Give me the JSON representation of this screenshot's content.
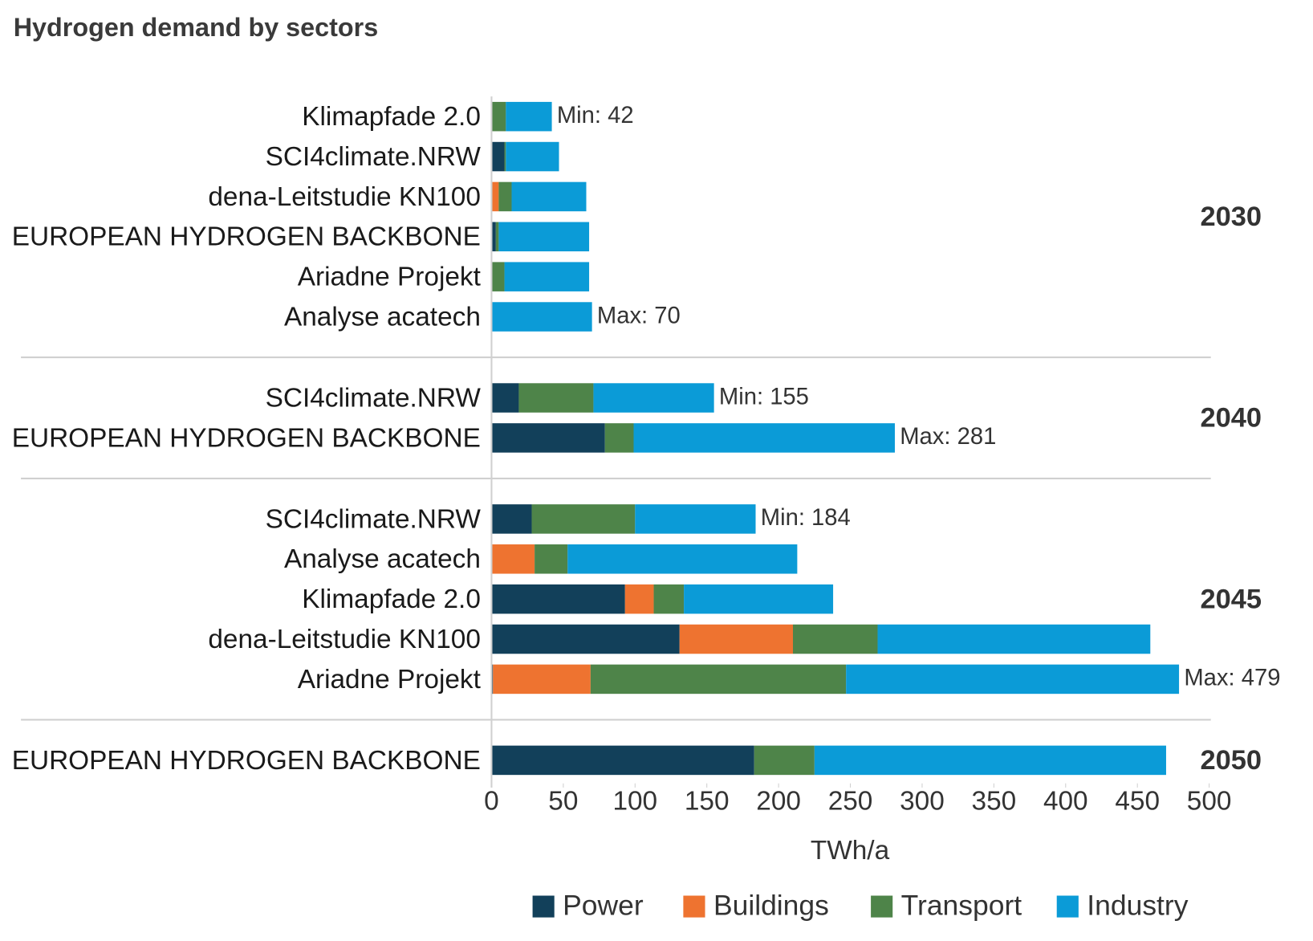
{
  "chart_data": {
    "type": "stacked-bar-horizontal",
    "title": "Hydrogen demand by sectors",
    "x_label": "TWh/a",
    "xlim": [
      0,
      500
    ],
    "xticks": [
      0,
      50,
      100,
      150,
      200,
      250,
      300,
      350,
      400,
      450,
      500
    ],
    "series": [
      {
        "name": "Power",
        "color": "#12405a"
      },
      {
        "name": "Buildings",
        "color": "#ee7330"
      },
      {
        "name": "Transport",
        "color": "#4e8449"
      },
      {
        "name": "Industry",
        "color": "#0b9bd7"
      }
    ],
    "groups": [
      {
        "label": "2030",
        "bars": [
          {
            "category": "Klimapfade 2.0",
            "values": [
              0,
              0,
              10,
              32
            ],
            "annotation": "Min: 42"
          },
          {
            "category": "SCI4climate.NRW",
            "values": [
              9,
              0,
              1,
              37
            ]
          },
          {
            "category": "dena-Leitstudie KN100",
            "values": [
              0,
              5,
              9,
              52
            ]
          },
          {
            "category": "EUROPEAN HYDROGEN BACKBONE",
            "values": [
              3,
              0,
              2,
              63
            ]
          },
          {
            "category": "Ariadne Projekt",
            "values": [
              0,
              0,
              9,
              59
            ]
          },
          {
            "category": "Analyse acatech",
            "values": [
              0,
              0,
              0,
              70
            ],
            "annotation": "Max: 70"
          }
        ]
      },
      {
        "label": "2040",
        "bars": [
          {
            "category": "SCI4climate.NRW",
            "values": [
              19,
              0,
              52,
              84
            ],
            "annotation": "Min: 155"
          },
          {
            "category": "EUROPEAN HYDROGEN BACKBONE",
            "values": [
              79,
              0,
              20,
              182
            ],
            "annotation": "Max: 281"
          }
        ]
      },
      {
        "label": "2045",
        "bars": [
          {
            "category": "SCI4climate.NRW",
            "values": [
              28,
              0,
              72,
              84
            ],
            "annotation": "Min: 184"
          },
          {
            "category": "Analyse acatech",
            "values": [
              0,
              30,
              23,
              160
            ]
          },
          {
            "category": "Klimapfade 2.0",
            "values": [
              93,
              20,
              21,
              104
            ]
          },
          {
            "category": "dena-Leitstudie KN100",
            "values": [
              131,
              79,
              59,
              190
            ]
          },
          {
            "category": "Ariadne Projekt",
            "values": [
              1,
              68,
              178,
              232
            ],
            "annotation": "Max: 479"
          }
        ]
      },
      {
        "label": "2050",
        "bars": [
          {
            "category": "EUROPEAN HYDROGEN BACKBONE",
            "values": [
              183,
              0,
              42,
              245
            ]
          }
        ]
      }
    ]
  }
}
